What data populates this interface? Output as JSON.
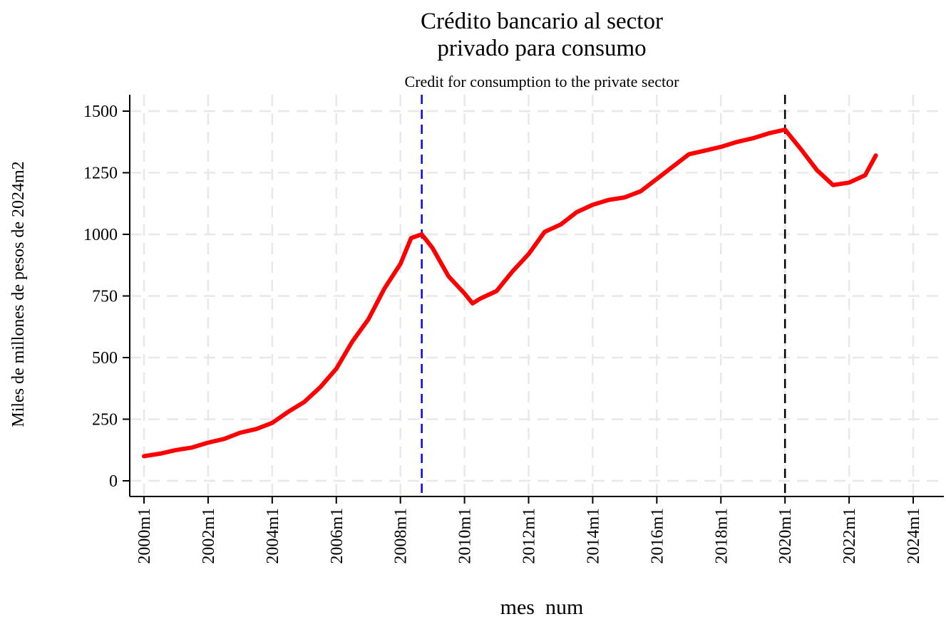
{
  "chart_data": {
    "type": "line",
    "title_line1": "Crédito bancario al sector",
    "title_line2": "privado para consumo",
    "subtitle": "Credit for consumption to the private sector",
    "xlabel": "mes  num",
    "ylabel": "Miles de millones de pesos de 2024m2",
    "x_ticks": [
      "2000m1",
      "2002m1",
      "2004m1",
      "2006m1",
      "2008m1",
      "2010m1",
      "2012m1",
      "2014m1",
      "2016m1",
      "2018m1",
      "2020m1",
      "2022m1",
      "2024m1"
    ],
    "y_ticks": [
      "0",
      "250",
      "500",
      "750",
      "1000",
      "1250",
      "1500"
    ],
    "xlim": [
      "2000m1",
      "2024m1"
    ],
    "ylim": [
      0,
      1500
    ],
    "grid": true,
    "line_color": "#ff0000",
    "reference_lines": [
      {
        "x": "2008m9",
        "color": "#0000ff",
        "style": "dashed"
      },
      {
        "x": "2020m1",
        "color": "#000000",
        "style": "dashed"
      }
    ],
    "series": [
      {
        "x": [
          "2000m1",
          "2000m7",
          "2001m1",
          "2001m7",
          "2002m1",
          "2002m7",
          "2003m1",
          "2003m7",
          "2004m1",
          "2004m7",
          "2005m1",
          "2005m7",
          "2006m1",
          "2006m7",
          "2007m1",
          "2007m7",
          "2008m1",
          "2008m5",
          "2008m9",
          "2009m1",
          "2009m7",
          "2010m1",
          "2010m4",
          "2010m7",
          "2011m1",
          "2011m7",
          "2012m1",
          "2012m7",
          "2013m1",
          "2013m7",
          "2014m1",
          "2014m7",
          "2015m1",
          "2015m7",
          "2016m1",
          "2016m7",
          "2017m1",
          "2017m7",
          "2018m1",
          "2018m7",
          "2019m1",
          "2019m7",
          "2020m1",
          "2020m7",
          "2021m1",
          "2021m7",
          "2022m1",
          "2022m7",
          "2022m11"
        ],
        "values": [
          100,
          110,
          125,
          135,
          155,
          170,
          195,
          210,
          235,
          280,
          320,
          380,
          455,
          565,
          655,
          780,
          880,
          985,
          1000,
          945,
          830,
          760,
          720,
          740,
          770,
          850,
          920,
          1010,
          1040,
          1090,
          1120,
          1140,
          1150,
          1175,
          1225,
          1275,
          1325,
          1340,
          1355,
          1375,
          1390,
          1410,
          1425,
          1345,
          1260,
          1200,
          1210,
          1240,
          1320
        ]
      }
    ]
  }
}
